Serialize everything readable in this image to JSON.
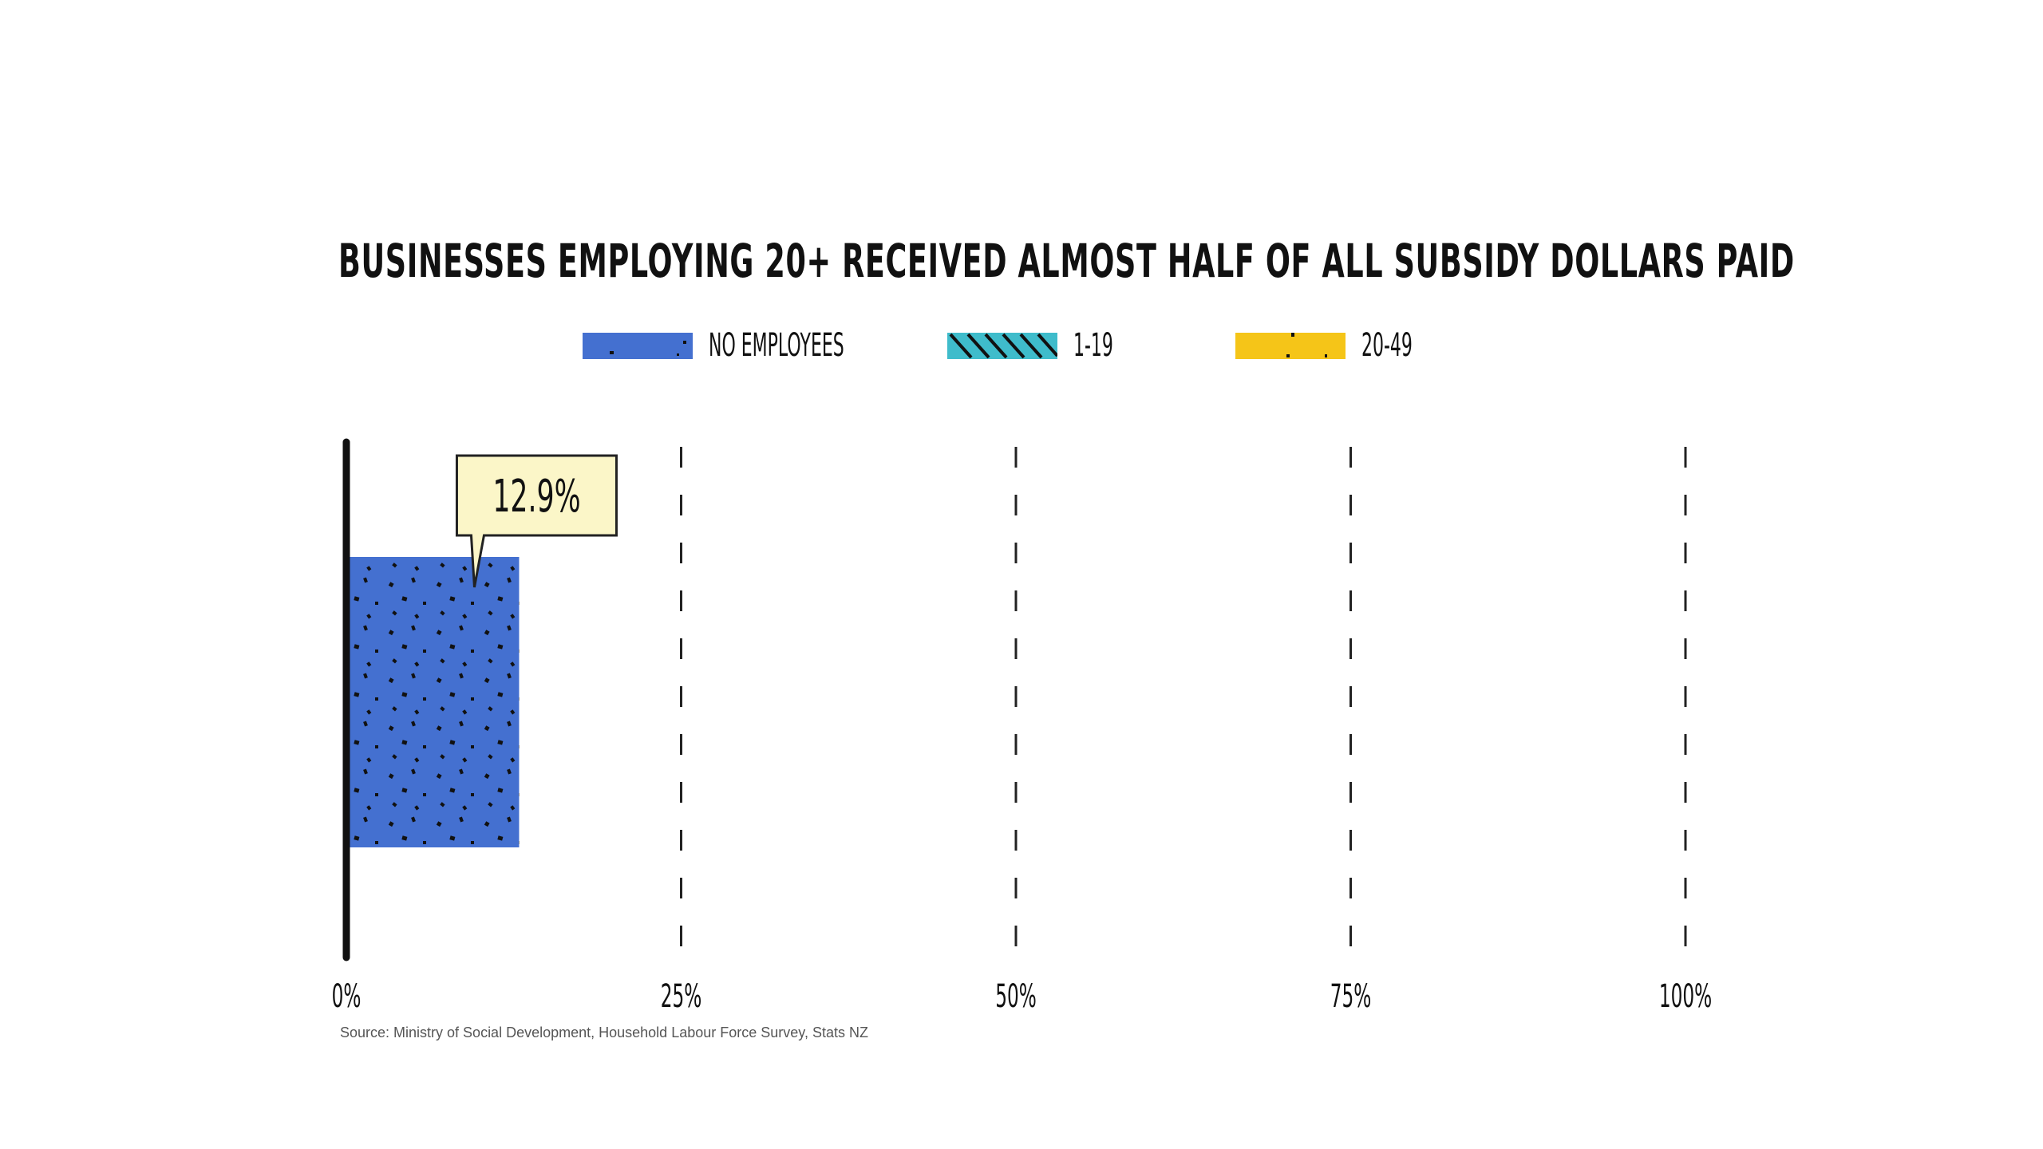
{
  "chart_data": {
    "type": "bar",
    "orientation": "horizontal",
    "title": "BUSINESSES EMPLOYING 20+ RECEIVED ALMOST HALF OF ALL SUBSIDY DOLLARS PAID",
    "legend": {
      "placement": "top-center",
      "entries": [
        {
          "label": "NO EMPLOYEES",
          "color": "#4470d0",
          "pattern": "dots"
        },
        {
          "label": "1-19",
          "color": "#3fbccb",
          "pattern": "hatch"
        },
        {
          "label": "20-49",
          "color": "#f5c518",
          "pattern": "dots"
        }
      ]
    },
    "series": [
      {
        "name": "NO EMPLOYEES",
        "values": [
          12.9
        ],
        "color": "#4470d0"
      }
    ],
    "data_labels": [
      "12.9%"
    ],
    "xlim": [
      0,
      100
    ],
    "x_ticks": [
      0,
      25,
      50,
      75,
      100
    ],
    "x_tick_labels": [
      "0%",
      "25%",
      "50%",
      "75%",
      "100%"
    ],
    "grid": "vertical-dashed",
    "source": "Source: Ministry of Social Development, Household Labour Force Survey, Stats NZ"
  }
}
